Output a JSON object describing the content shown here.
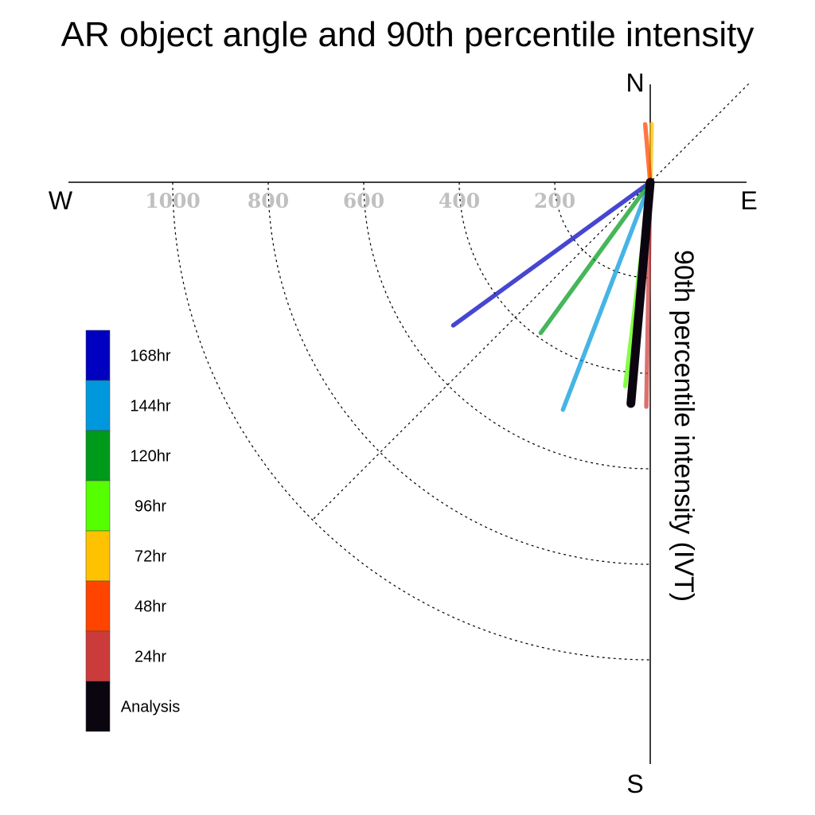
{
  "chart_data": {
    "type": "polar-vector",
    "title": "AR object angle and 90th percentile intensity",
    "ylabel": "90th percentile intensity (IVT)",
    "compass": {
      "north": "N",
      "south": "S",
      "east": "E",
      "west": "W"
    },
    "radial_ticks": [
      200,
      400,
      600,
      800,
      1000
    ],
    "radial_max": 1000,
    "series": [
      {
        "name": "168hr",
        "color": "#0000c0",
        "angle_deg": 234,
        "intensity": 510
      },
      {
        "name": "144hr",
        "color": "#0098dc",
        "angle_deg": 201,
        "intensity": 510
      },
      {
        "name": "120hr",
        "color": "#009a1a",
        "angle_deg": 216,
        "intensity": 390
      },
      {
        "name": "96hr",
        "color": "#55ff00",
        "angle_deg": 187,
        "intensity": 430
      },
      {
        "name": "72hr",
        "color": "#ffc200",
        "angle_deg": 1.5,
        "intensity": 122
      },
      {
        "name": "48hr",
        "color": "#ff4400",
        "angle_deg": 355,
        "intensity": 122
      },
      {
        "name": "24hr",
        "color": "#cc3b3b",
        "angle_deg": 181,
        "intensity": 470
      },
      {
        "name": "Analysis",
        "color": "#0b0510",
        "angle_deg": 185,
        "intensity": 465
      }
    ]
  }
}
